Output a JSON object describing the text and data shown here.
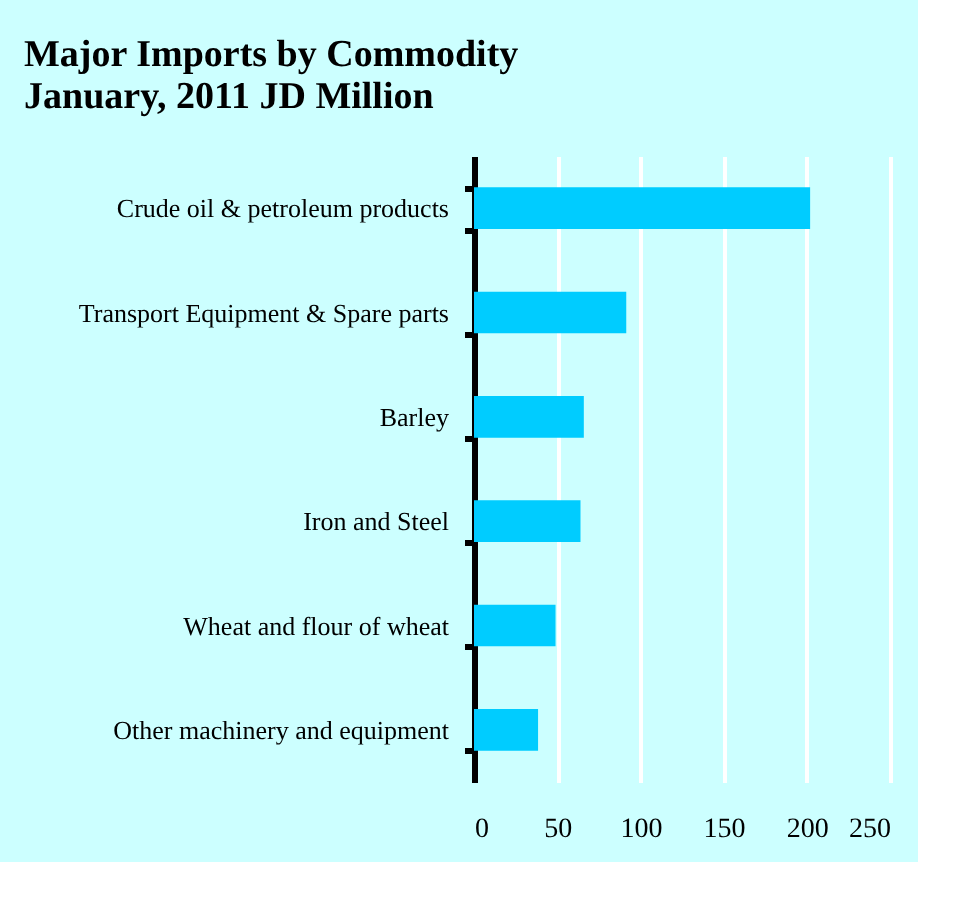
{
  "chart_data": {
    "type": "bar",
    "orientation": "horizontal",
    "title": "Major Imports by Commodity\nJanuary, 2011   JD Million",
    "categories": [
      "Crude oil & petroleum products",
      "Transport Equipment & Spare parts",
      "Barley",
      "Iron and Steel",
      "Wheat and flour of wheat",
      "Other machinery and equipment"
    ],
    "values": [
      202,
      91.5,
      66,
      64,
      49,
      38.5
    ],
    "color": "#00ccff",
    "xlim": [
      0,
      250
    ],
    "xticks": [
      0,
      50,
      100,
      150,
      200,
      250
    ],
    "grid": "x"
  }
}
